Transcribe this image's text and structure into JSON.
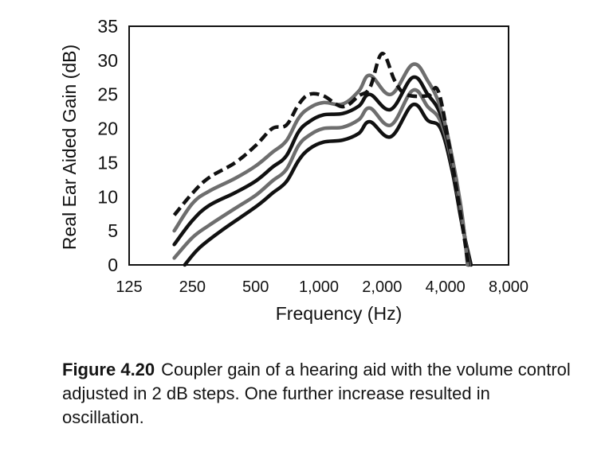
{
  "chart_data": {
    "type": "line",
    "xscale": "log2",
    "xlim": [
      125,
      8000
    ],
    "ylim": [
      0,
      35
    ],
    "xticks": [
      125,
      250,
      500,
      1000,
      2000,
      4000,
      8000
    ],
    "xtick_labels": [
      "125",
      "250",
      "500",
      "1,000",
      "2,000",
      "4,000",
      "8,000"
    ],
    "yticks": [
      0,
      5,
      10,
      15,
      20,
      25,
      30,
      35
    ],
    "ytick_labels": [
      "0",
      "5",
      "10",
      "15",
      "20",
      "25",
      "30",
      "35"
    ],
    "xlabel": "Frequency (Hz)",
    "ylabel": "Real Ear Aided Gain (dB)",
    "grid": false,
    "legend": "none",
    "series": [
      {
        "line_style": "solid",
        "color": "#111111",
        "points": [
          [
            230,
            0
          ],
          [
            270,
            2.5
          ],
          [
            350,
            5.2
          ],
          [
            500,
            8.5
          ],
          [
            600,
            10.5
          ],
          [
            700,
            12.2
          ],
          [
            800,
            15.3
          ],
          [
            900,
            17.0
          ],
          [
            1050,
            18.0
          ],
          [
            1300,
            18.3
          ],
          [
            1550,
            19.3
          ],
          [
            1750,
            21.0
          ],
          [
            2200,
            18.8
          ],
          [
            2800,
            23.5
          ],
          [
            3300,
            21.2
          ],
          [
            3800,
            20.0
          ],
          [
            4300,
            14.0
          ],
          [
            4800,
            6.0
          ],
          [
            5300,
            0
          ]
        ]
      },
      {
        "line_style": "solid",
        "color": "#6e6e6e",
        "points": [
          [
            205,
            1
          ],
          [
            250,
            4.0
          ],
          [
            300,
            5.8
          ],
          [
            400,
            8.3
          ],
          [
            500,
            10.2
          ],
          [
            600,
            12.3
          ],
          [
            700,
            14.0
          ],
          [
            800,
            17.5
          ],
          [
            900,
            19.0
          ],
          [
            1050,
            20.0
          ],
          [
            1300,
            20.2
          ],
          [
            1550,
            21.3
          ],
          [
            1750,
            23.0
          ],
          [
            2200,
            20.5
          ],
          [
            2800,
            25.6
          ],
          [
            3300,
            23.2
          ],
          [
            3800,
            21.0
          ],
          [
            4300,
            15.0
          ],
          [
            4800,
            6.5
          ],
          [
            5200,
            0
          ]
        ]
      },
      {
        "line_style": "solid",
        "color": "#111111",
        "points": [
          [
            205,
            3
          ],
          [
            250,
            6.5
          ],
          [
            300,
            8.7
          ],
          [
            400,
            10.6
          ],
          [
            500,
            12.3
          ],
          [
            600,
            14.3
          ],
          [
            700,
            16.0
          ],
          [
            800,
            19.5
          ],
          [
            900,
            21.0
          ],
          [
            1050,
            22.0
          ],
          [
            1300,
            22.2
          ],
          [
            1550,
            23.3
          ],
          [
            1750,
            25.0
          ],
          [
            2200,
            22.8
          ],
          [
            2800,
            27.5
          ],
          [
            3300,
            25.0
          ],
          [
            3800,
            22.0
          ],
          [
            4300,
            15.5
          ],
          [
            4800,
            7.0
          ],
          [
            5150,
            0
          ]
        ]
      },
      {
        "line_style": "solid",
        "color": "#6e6e6e",
        "points": [
          [
            205,
            5
          ],
          [
            250,
            9.0
          ],
          [
            300,
            10.8
          ],
          [
            400,
            12.7
          ],
          [
            500,
            14.5
          ],
          [
            600,
            16.5
          ],
          [
            700,
            18.2
          ],
          [
            800,
            21.5
          ],
          [
            900,
            23.0
          ],
          [
            1050,
            23.8
          ],
          [
            1300,
            23.6
          ],
          [
            1550,
            25.5
          ],
          [
            1750,
            27.8
          ],
          [
            2200,
            25.0
          ],
          [
            2800,
            29.4
          ],
          [
            3300,
            27.0
          ],
          [
            3800,
            23.0
          ],
          [
            4300,
            16.0
          ],
          [
            4800,
            7.5
          ],
          [
            5100,
            0
          ]
        ]
      },
      {
        "line_style": "dashed",
        "color": "#111111",
        "points": [
          [
            205,
            7.3
          ],
          [
            250,
            10.5
          ],
          [
            300,
            12.8
          ],
          [
            400,
            15.0
          ],
          [
            500,
            17.5
          ],
          [
            600,
            20.0
          ],
          [
            700,
            20.5
          ],
          [
            800,
            23.5
          ],
          [
            900,
            25.0
          ],
          [
            1050,
            24.8
          ],
          [
            1300,
            23.2
          ],
          [
            1550,
            24.8
          ],
          [
            1750,
            26.0
          ],
          [
            2000,
            31.0
          ],
          [
            2300,
            27.0
          ],
          [
            2600,
            25.0
          ],
          [
            3300,
            24.8
          ],
          [
            3700,
            25.5
          ],
          [
            4200,
            17.0
          ],
          [
            4700,
            8.0
          ],
          [
            5150,
            0
          ]
        ]
      }
    ]
  },
  "caption": {
    "label": "Figure 4.20",
    "text": "Coupler gain of a hearing aid with the volume control adjusted in 2 dB steps.  One further increase resulted in oscillation."
  }
}
